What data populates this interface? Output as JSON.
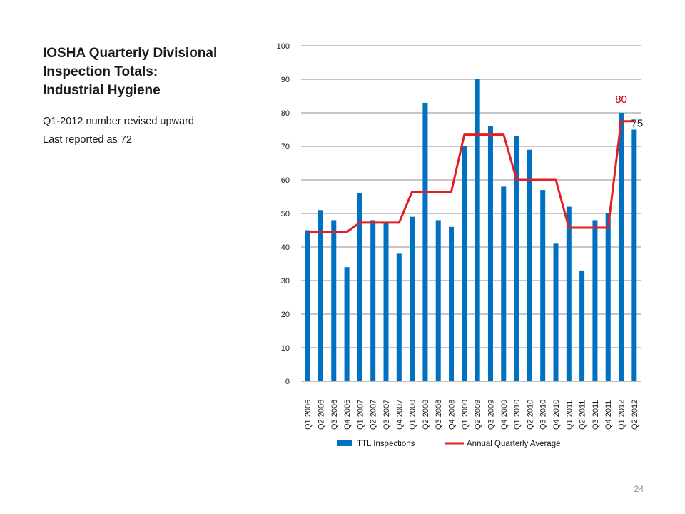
{
  "slide": {
    "title_lines": [
      "IOSHA Quarterly Divisional",
      "Inspection Totals:",
      "Industrial Hygiene"
    ],
    "notes": [
      "Q1-2012 number revised upward",
      "Last reported as 72"
    ],
    "page_number": "24"
  },
  "chart_data": {
    "type": "bar",
    "categories": [
      "Q1 2006",
      "Q2 2006",
      "Q3 2006",
      "Q4 2006",
      "Q1 2007",
      "Q2 2007",
      "Q3 2007",
      "Q4 2007",
      "Q1 2008",
      "Q2 2008",
      "Q3 2008",
      "Q4 2008",
      "Q1 2009",
      "Q2 2009",
      "Q3 2009",
      "Q4 2009",
      "Q1 2010",
      "Q2 2010",
      "Q3 2010",
      "Q4 2010",
      "Q1 2011",
      "Q2 2011",
      "Q3 2011",
      "Q4 2011",
      "Q1 2012",
      "Q2 2012"
    ],
    "series": [
      {
        "name": "TTL Inspections",
        "type": "bar",
        "color": "#0070c0",
        "values": [
          45,
          51,
          48,
          34,
          56,
          48,
          47,
          38,
          49,
          83,
          48,
          46,
          70,
          90,
          76,
          58,
          73,
          69,
          57,
          41,
          52,
          33,
          48,
          50,
          80,
          75
        ]
      },
      {
        "name": "Annual Quarterly Average",
        "type": "line",
        "color": "#e31e24",
        "values": [
          44.5,
          44.5,
          44.5,
          44.5,
          47.25,
          47.25,
          47.25,
          47.25,
          56.5,
          56.5,
          56.5,
          56.5,
          73.5,
          73.5,
          73.5,
          73.5,
          60,
          60,
          60,
          60,
          45.75,
          45.75,
          45.75,
          45.75,
          77.5,
          77.5
        ]
      }
    ],
    "ylim": [
      0,
      100
    ],
    "yticks": [
      0,
      10,
      20,
      30,
      40,
      50,
      60,
      70,
      80,
      90,
      100
    ],
    "grid": true,
    "legend_position": "bottom",
    "annotations": [
      {
        "text": "80",
        "category": "Q1 2012",
        "color": "#c00000"
      },
      {
        "text": "75",
        "category": "Q2 2012",
        "color": "#1a1a1a"
      }
    ]
  }
}
